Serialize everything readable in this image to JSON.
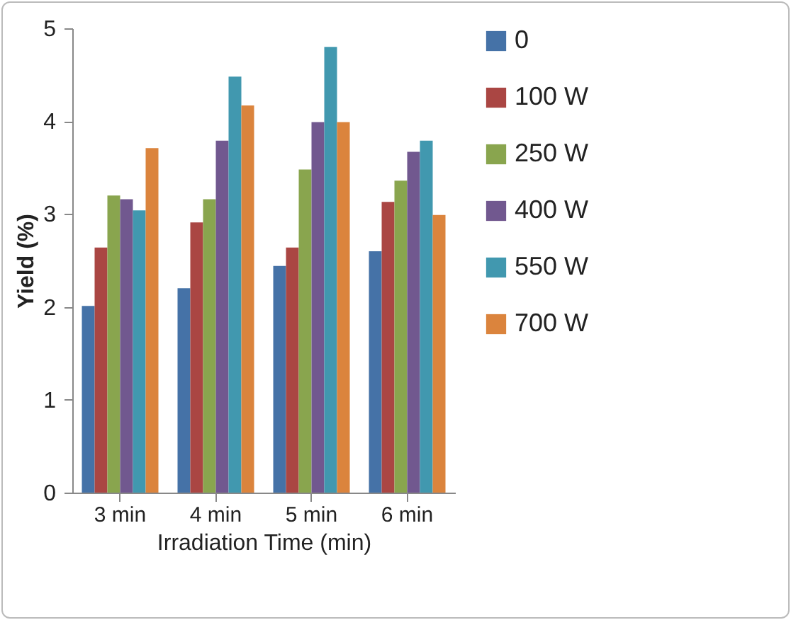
{
  "chart_data": {
    "type": "bar",
    "xlabel": "Irradiation Time (min)",
    "ylabel": "Yield (%)",
    "categories": [
      "3 min",
      "4 min",
      "5 min",
      "6 min"
    ],
    "series": [
      {
        "name": "0",
        "color": "#4572a7",
        "values": [
          2.01,
          2.2,
          2.44,
          2.6
        ]
      },
      {
        "name": "100 W",
        "color": "#aa4643",
        "values": [
          2.64,
          2.91,
          2.64,
          3.13
        ]
      },
      {
        "name": "250 W",
        "color": "#89a54e",
        "values": [
          3.2,
          3.16,
          3.48,
          3.36
        ]
      },
      {
        "name": "400 W",
        "color": "#71588f",
        "values": [
          3.16,
          3.79,
          3.99,
          3.67
        ]
      },
      {
        "name": "550 W",
        "color": "#4198af",
        "values": [
          3.04,
          4.48,
          4.8,
          3.79
        ]
      },
      {
        "name": "700 W",
        "color": "#db843d",
        "values": [
          3.71,
          4.17,
          3.99,
          2.99
        ]
      }
    ],
    "ylim": [
      0,
      5
    ],
    "yticks": [
      0,
      1,
      2,
      3,
      4,
      5
    ],
    "grid": false,
    "legend": "right"
  }
}
